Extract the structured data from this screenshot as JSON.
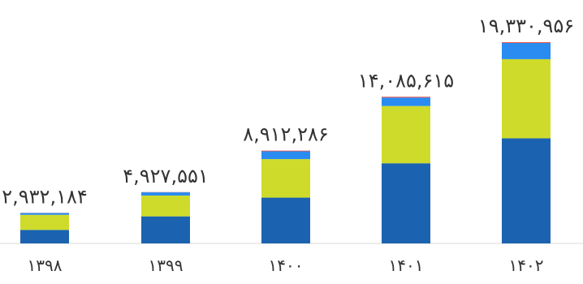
{
  "chart_data": {
    "type": "bar",
    "stacked": true,
    "categories": [
      "۱۳۹۸",
      "۱۳۹۹",
      "۱۴۰۰",
      "۱۴۰۱",
      "۱۴۰۲"
    ],
    "totals_labels": [
      "۲,۹۳۲,۱۸۴",
      "۴,۹۲۷,۵۵۱",
      "۸,۹۱۲,۲۸۶",
      "۱۴,۰۸۵,۶۱۵",
      "۱۹,۳۳۰,۹۵۶"
    ],
    "totals": [
      2932184,
      4927551,
      8912286,
      14085615,
      19330956
    ],
    "series": [
      {
        "color": "#1b63b0",
        "values": [
          1300000,
          2600000,
          4400000,
          7700000,
          10100000
        ]
      },
      {
        "color": "#cfdb2b",
        "values": [
          1450000,
          2000000,
          3700000,
          5500000,
          7600000
        ]
      },
      {
        "color": "#2a8cf0",
        "values": [
          172184,
          307551,
          752286,
          815615,
          1560956
        ]
      },
      {
        "color": "#e8413b",
        "values": [
          10000,
          20000,
          60000,
          70000,
          70000
        ]
      }
    ],
    "title": "",
    "xlabel": "",
    "ylabel": "",
    "ylim": [
      0,
      19330956
    ],
    "grid": false,
    "legend": "none"
  }
}
